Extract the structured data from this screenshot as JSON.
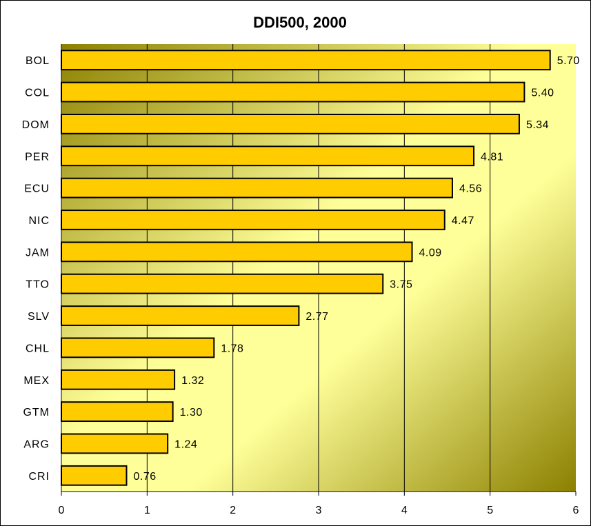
{
  "chart_data": {
    "type": "bar",
    "orientation": "horizontal",
    "title": "DDI500, 2000",
    "xlabel": "",
    "ylabel": "",
    "xlim": [
      0,
      6
    ],
    "x_ticks": [
      "0",
      "1",
      "2",
      "3",
      "4",
      "5",
      "6"
    ],
    "grid": "vertical",
    "legend": "none",
    "categories": [
      "BOL",
      "COL",
      "DOM",
      "PER",
      "ECU",
      "NIC",
      "JAM",
      "TTO",
      "SLV",
      "CHL",
      "MEX",
      "GTM",
      "ARG",
      "CRI"
    ],
    "values": [
      5.7,
      5.4,
      5.34,
      4.81,
      4.56,
      4.47,
      4.09,
      3.75,
      2.77,
      1.78,
      1.32,
      1.3,
      1.24,
      0.76
    ],
    "value_labels": [
      "5.70",
      "5.40",
      "5.34",
      "4.81",
      "4.56",
      "4.47",
      "4.09",
      "3.75",
      "2.77",
      "1.78",
      "1.32",
      "1.30",
      "1.24",
      "0.76"
    ],
    "colors": {
      "bar_fill": "#FFCC00",
      "bar_stroke": "#000000",
      "plot_gradient_dark": "#8B8000",
      "plot_gradient_light": "#FFFF99"
    }
  }
}
